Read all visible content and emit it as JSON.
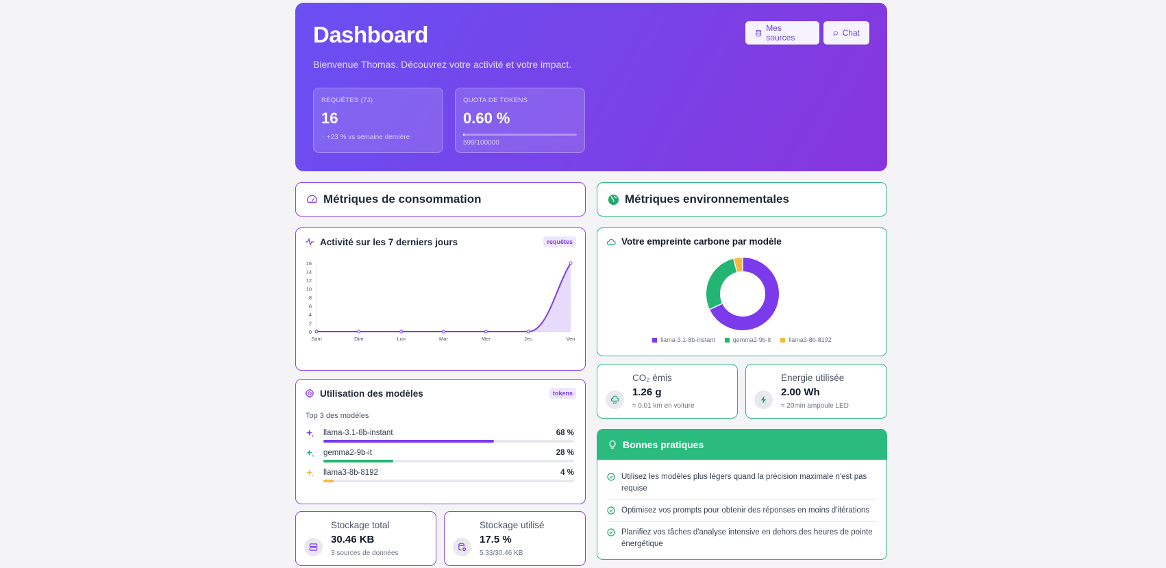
{
  "header": {
    "title": "Dashboard",
    "subtitle": "Bienvenue Thomas. Découvrez votre activité et votre impact.",
    "btn_sources": "Mes sources",
    "btn_chat": "Chat"
  },
  "stats": {
    "requests": {
      "label": "Requêtes (7j)",
      "value": "16",
      "trend": "+23 % vs semaine dernière"
    },
    "quota": {
      "label": "Quota de tokens",
      "value": "0.60 %",
      "detail": "599/100000",
      "fraction": 0.006
    }
  },
  "sections": {
    "consumption": "Métriques de consommation",
    "environment": "Métriques environnementales"
  },
  "activity": {
    "title": "Activité sur les 7 derniers jours",
    "badge": "requêtes"
  },
  "chart_data": {
    "type": "area",
    "categories": [
      "Sam",
      "Dim",
      "Lun",
      "Mar",
      "Mer",
      "Jeu",
      "Ven"
    ],
    "values": [
      0,
      0,
      0,
      0,
      0,
      0,
      16
    ],
    "ylim": [
      0,
      16
    ],
    "yticks": [
      "0",
      "2",
      "4",
      "6",
      "8",
      "10",
      "12",
      "14",
      "16"
    ],
    "color": "#7c3aed"
  },
  "carbon": {
    "title": "Votre empreinte carbone par modèle",
    "slices": [
      {
        "name": "llama-3.1-8b-instant",
        "value": 68,
        "color": "#7c3aed"
      },
      {
        "name": "gemma2-9b-it",
        "value": 28,
        "color": "#22b573"
      },
      {
        "name": "llama3-8b-8192",
        "value": 4,
        "color": "#f5b942"
      }
    ]
  },
  "co2": {
    "label": "CO₂ émis",
    "value": "1.26 g",
    "note": "≈ 0.01 km en voiture"
  },
  "energy": {
    "label": "Énergie utilisée",
    "value": "2.00 Wh",
    "note": "≈ 20min ampoule LED"
  },
  "models": {
    "title": "Utilisation des modèles",
    "badge": "tokens",
    "subtitle": "Top 3 des modèles",
    "items": [
      {
        "name": "llama-3.1-8b-instant",
        "pct": "68 %",
        "fraction": 0.68,
        "color": "#7c3aed"
      },
      {
        "name": "gemma2-9b-it",
        "pct": "28 %",
        "fraction": 0.28,
        "color": "#22b573"
      },
      {
        "name": "llama3-8b-8192",
        "pct": "4 %",
        "fraction": 0.04,
        "color": "#f5b942"
      }
    ]
  },
  "storage_total": {
    "label": "Stockage total",
    "value": "30.46 KB",
    "note": "3 sources de données"
  },
  "storage_used": {
    "label": "Stockage utilisé",
    "value": "17.5 %",
    "note": "5.33/30.46 KB"
  },
  "tips": {
    "title": "Bonnes pratiques",
    "items": [
      "Utilisez les modèles plus légers quand la précision maximale n'est pas requise",
      "Optimisez vos prompts pour obtenir des réponses en moins d'itérations",
      "Planifiez vos tâches d'analyse intensive en dehors des heures de pointe énergétique"
    ]
  }
}
